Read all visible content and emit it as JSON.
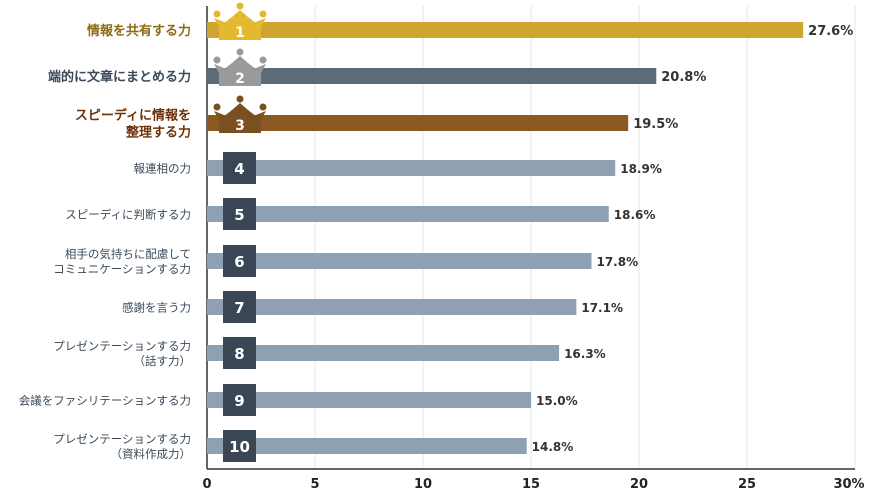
{
  "chart_data": {
    "type": "bar",
    "orientation": "horizontal",
    "categories": [
      [
        "情報を共有する力"
      ],
      [
        "端的に文章にまとめる力"
      ],
      [
        "スピーディに情報を",
        "整理する力"
      ],
      [
        "報連相の力"
      ],
      [
        "スピーディに判断する力"
      ],
      [
        "相手の気持ちに配慮して",
        "コミュニケーションする力"
      ],
      [
        "感謝を言う力"
      ],
      [
        "プレゼンテーションする力",
        "（話す力）"
      ],
      [
        "会議をファシリテーションする力"
      ],
      [
        "プレゼンテーションする力",
        "（資料作成力）"
      ]
    ],
    "values": [
      27.6,
      20.8,
      19.5,
      18.9,
      18.6,
      17.8,
      17.1,
      16.3,
      15.0,
      14.8
    ],
    "value_labels": [
      "27.6%",
      "20.8%",
      "19.5%",
      "18.9%",
      "18.6%",
      "17.8%",
      "17.1%",
      "16.3%",
      "15.0%",
      "14.8%"
    ],
    "ranks": [
      "1",
      "2",
      "3",
      "4",
      "5",
      "6",
      "7",
      "8",
      "9",
      "10"
    ],
    "xlim": [
      0,
      30
    ],
    "xticks": [
      "0",
      "5",
      "10",
      "15",
      "20",
      "25",
      "30%"
    ],
    "grid": true,
    "colors": {
      "gold": "#cfa42f",
      "silver": "#5d6b78",
      "bronze": "#8a5a22",
      "default_bar": "#8ea0b2",
      "rank_badge": "#3a4654",
      "crown_gold": "#e2b930",
      "crown_silver": "#9a9a9a",
      "crown_bronze": "#7a5020",
      "label_gold": "#8c6b12",
      "label_bronze": "#6e3208",
      "label_default": "#3a4a5a",
      "grid": "#e6e6e6",
      "axis": "#333333"
    }
  }
}
